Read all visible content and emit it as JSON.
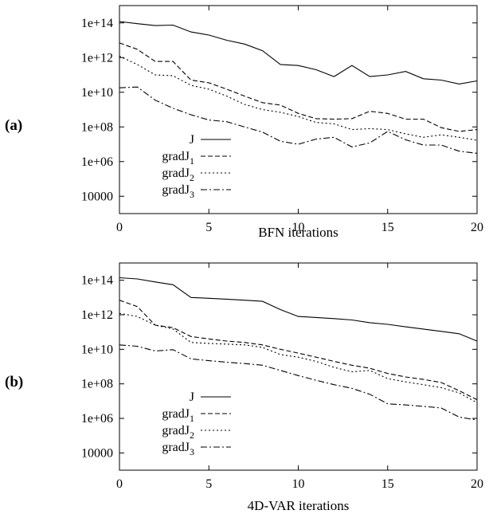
{
  "chart_data": [
    {
      "type": "line",
      "panel_label": "(a)",
      "xlabel": "BFN iterations",
      "ylabel": "",
      "yscale": "log",
      "xlim": [
        0,
        20
      ],
      "ylim": [
        1000,
        1000000000000000.0
      ],
      "xticks": [
        "0",
        "5",
        "10",
        "15",
        "20"
      ],
      "yticks": [
        "10000",
        "1e+06",
        "1e+08",
        "1e+10",
        "1e+12",
        "1e+14"
      ],
      "legend_position": "lower-left",
      "x": [
        0,
        1,
        2,
        3,
        4,
        5,
        6,
        7,
        8,
        9,
        10,
        11,
        12,
        13,
        14,
        15,
        16,
        17,
        18,
        19,
        20
      ],
      "series": [
        {
          "name": "J",
          "sub": "",
          "dash": "solid",
          "values": [
            120000000000000.0,
            90000000000000.0,
            70000000000000.0,
            75000000000000.0,
            30000000000000.0,
            20000000000000.0,
            10000000000000.0,
            6000000000000.0,
            2500000000000.0,
            400000000000.0,
            350000000000.0,
            200000000000.0,
            80000000000.0,
            350000000000.0,
            80000000000.0,
            100000000000.0,
            160000000000.0,
            60000000000.0,
            50000000000.0,
            30000000000.0,
            45000000000.0
          ]
        },
        {
          "name": "gradJ",
          "sub": "1",
          "dash": "dashed",
          "values": [
            7000000000000.0,
            3000000000000.0,
            600000000000.0,
            600000000000.0,
            50000000000.0,
            35000000000.0,
            15000000000.0,
            6000000000.0,
            2500000000.0,
            1800000000.0,
            600000000.0,
            300000000.0,
            280000000.0,
            300000000.0,
            800000000.0,
            600000000.0,
            280000000.0,
            280000000.0,
            90000000.0,
            55000000.0,
            70000000.0
          ]
        },
        {
          "name": "gradJ",
          "sub": "2",
          "dash": "dotted",
          "values": [
            1200000000000.0,
            400000000000.0,
            100000000000.0,
            90000000000.0,
            25000000000.0,
            15000000000.0,
            6000000000.0,
            2000000000.0,
            1000000000.0,
            700000000.0,
            400000000.0,
            180000000.0,
            150000000.0,
            70000000.0,
            80000000.0,
            70000000.0,
            40000000.0,
            25000000.0,
            35000000.0,
            25000000.0,
            17000000.0
          ]
        },
        {
          "name": "gradJ",
          "sub": "3",
          "dash": "dashdot",
          "values": [
            18000000000.0,
            20000000000.0,
            3500000000.0,
            1200000000.0,
            500000000.0,
            250000000.0,
            200000000.0,
            100000000.0,
            50000000.0,
            15000000.0,
            10000000.0,
            20000000.0,
            25000000.0,
            7000000.0,
            12000000.0,
            55000000.0,
            18000000.0,
            9000000.0,
            9000000.0,
            4000000.0,
            3000000.0
          ]
        }
      ]
    },
    {
      "type": "line",
      "panel_label": "(b)",
      "xlabel": "4D-VAR iterations",
      "ylabel": "",
      "yscale": "log",
      "xlim": [
        0,
        20
      ],
      "ylim": [
        1000,
        1000000000000000.0
      ],
      "xticks": [
        "0",
        "5",
        "10",
        "15",
        "20"
      ],
      "yticks": [
        "10000",
        "1e+06",
        "1e+08",
        "1e+10",
        "1e+12",
        "1e+14"
      ],
      "legend_position": "lower-left",
      "x": [
        0,
        1,
        2,
        3,
        4,
        5,
        6,
        7,
        8,
        9,
        10,
        11,
        12,
        13,
        14,
        15,
        16,
        17,
        18,
        19,
        20
      ],
      "series": [
        {
          "name": "J",
          "sub": "",
          "dash": "solid",
          "values": [
            140000000000000.0,
            120000000000000.0,
            80000000000000.0,
            55000000000000.0,
            10000000000000.0,
            9000000000000.0,
            8000000000000.0,
            7000000000000.0,
            6000000000000.0,
            2000000000000.0,
            800000000000.0,
            700000000000.0,
            600000000000.0,
            500000000000.0,
            350000000000.0,
            280000000000.0,
            200000000000.0,
            150000000000.0,
            110000000000.0,
            80000000000.0,
            30000000000.0
          ]
        },
        {
          "name": "gradJ",
          "sub": "1",
          "dash": "dashed",
          "values": [
            7000000000000.0,
            3000000000000.0,
            250000000000.0,
            180000000000.0,
            55000000000.0,
            40000000000.0,
            30000000000.0,
            25000000000.0,
            18000000000.0,
            10000000000.0,
            6000000000.0,
            3500000000.0,
            2000000000.0,
            1200000000.0,
            800000000.0,
            400000000.0,
            250000000.0,
            180000000.0,
            120000000.0,
            40000000.0,
            12000000.0
          ]
        },
        {
          "name": "gradJ",
          "sub": "2",
          "dash": "dotted",
          "values": [
            1200000000000.0,
            800000000000.0,
            250000000000.0,
            150000000000.0,
            25000000000.0,
            22000000000.0,
            20000000000.0,
            18000000000.0,
            13000000000.0,
            5000000000.0,
            3500000000.0,
            2000000000.0,
            900000000.0,
            500000000.0,
            600000000.0,
            200000000.0,
            130000000.0,
            90000000.0,
            60000000.0,
            30000000.0,
            8000000.0
          ]
        },
        {
          "name": "gradJ",
          "sub": "3",
          "dash": "dashdot",
          "values": [
            18000000000.0,
            15000000000.0,
            8000000000.0,
            9500000000.0,
            2800000000.0,
            2200000000.0,
            1800000000.0,
            1500000000.0,
            1200000000.0,
            600000000.0,
            300000000.0,
            160000000.0,
            90000000.0,
            55000000.0,
            25000000.0,
            7000000.0,
            6000000.0,
            5000000.0,
            4000000.0,
            1200000.0,
            800000.0
          ]
        }
      ]
    }
  ]
}
